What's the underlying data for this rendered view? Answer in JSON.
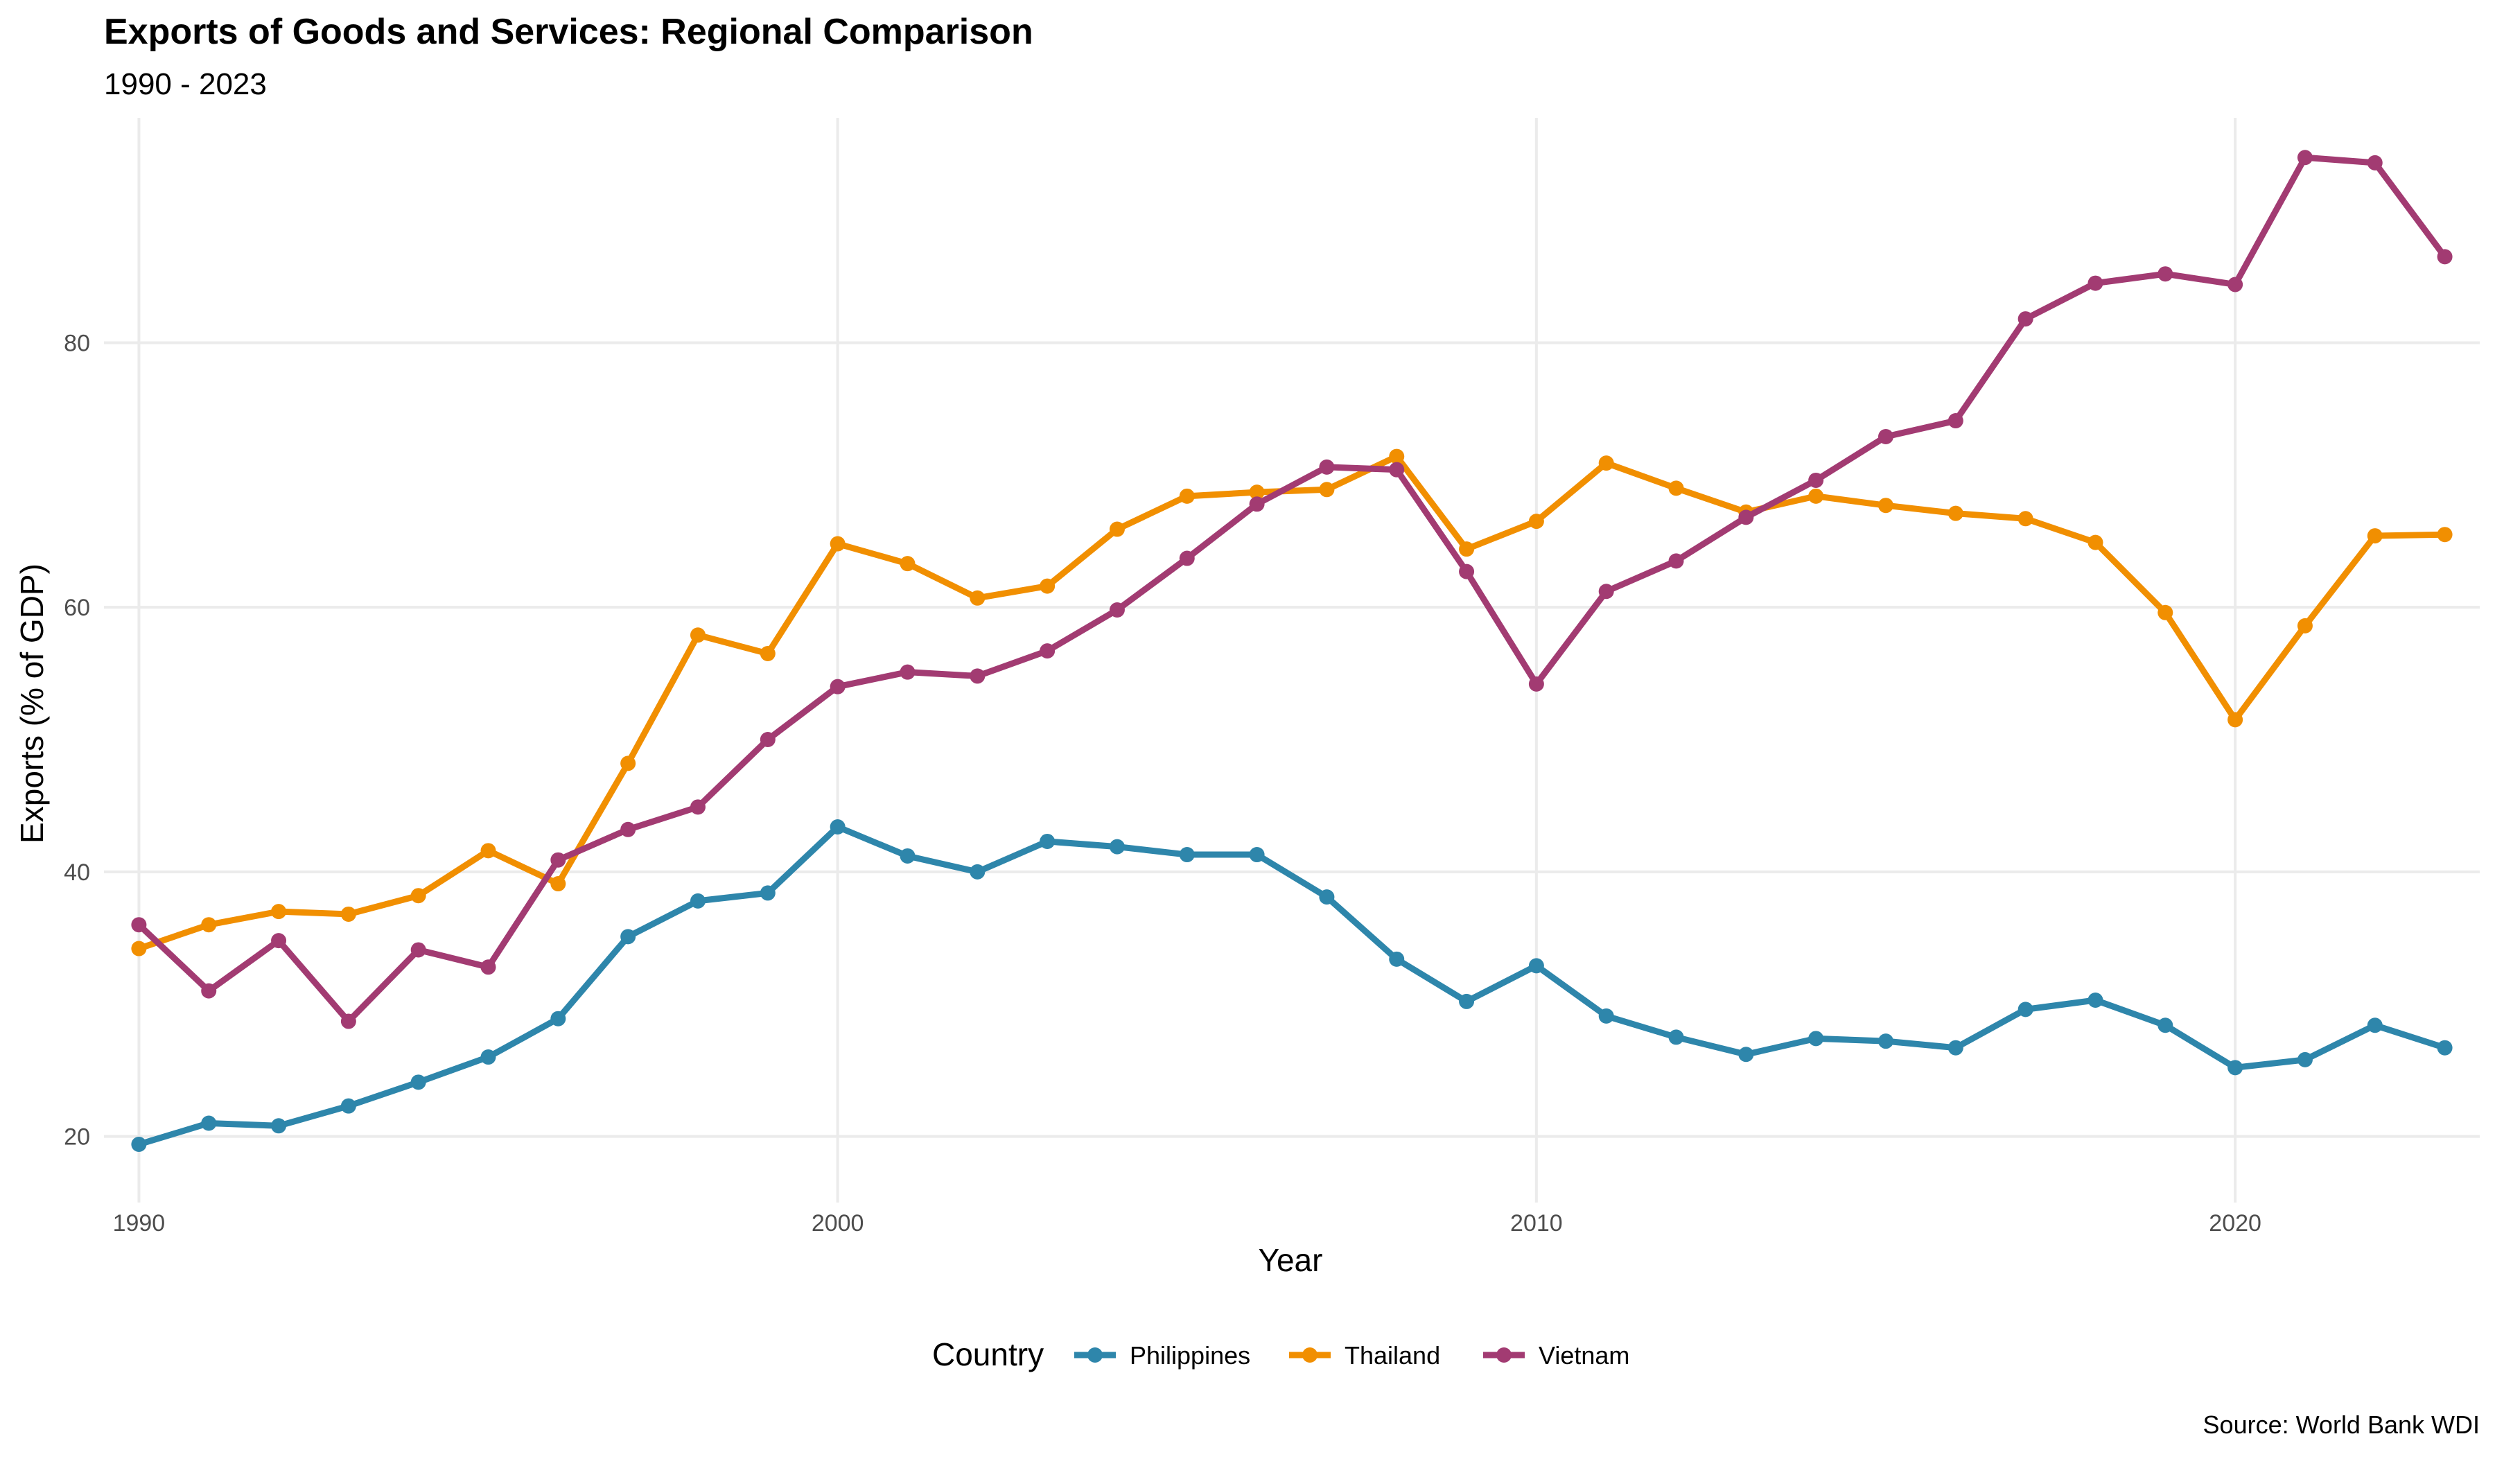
{
  "chart_data": {
    "type": "line",
    "title": "Exports of Goods and Services: Regional Comparison",
    "subtitle": "1990 - 2023",
    "xlabel": "Year",
    "ylabel": "Exports (% of GDP)",
    "caption": "Source: World Bank WDI",
    "legend_title": "Country",
    "legend_position": "bottom",
    "grid": true,
    "xlim": [
      1989.5,
      2023.5
    ],
    "ylim": [
      15,
      97
    ],
    "x_ticks": [
      1990,
      2000,
      2010,
      2020
    ],
    "y_ticks": [
      20,
      40,
      60,
      80
    ],
    "x": [
      1990,
      1991,
      1992,
      1993,
      1994,
      1995,
      1996,
      1997,
      1998,
      1999,
      2000,
      2001,
      2002,
      2003,
      2004,
      2005,
      2006,
      2007,
      2008,
      2009,
      2010,
      2011,
      2012,
      2013,
      2014,
      2015,
      2016,
      2017,
      2018,
      2019,
      2020,
      2021,
      2022,
      2023
    ],
    "series": [
      {
        "name": "Philippines",
        "color": "#2E86AB",
        "values": [
          19.4,
          21.0,
          20.8,
          22.3,
          24.1,
          26.0,
          28.9,
          35.1,
          37.8,
          38.4,
          43.4,
          41.2,
          40.0,
          42.3,
          41.9,
          41.3,
          41.3,
          38.1,
          33.4,
          30.2,
          32.9,
          29.1,
          27.5,
          26.2,
          27.4,
          27.2,
          26.7,
          29.6,
          30.3,
          28.4,
          25.2,
          25.8,
          28.4,
          26.7
        ]
      },
      {
        "name": "Thailand",
        "color": "#F18F01",
        "values": [
          34.2,
          36.0,
          37.0,
          36.8,
          38.2,
          41.6,
          39.1,
          48.2,
          57.9,
          56.5,
          64.8,
          63.3,
          60.7,
          61.6,
          65.9,
          68.4,
          68.7,
          68.9,
          71.4,
          64.4,
          66.5,
          70.9,
          69.0,
          67.2,
          68.4,
          67.7,
          67.1,
          66.7,
          64.9,
          59.6,
          51.5,
          58.6,
          65.4,
          65.5
        ]
      },
      {
        "name": "Vietnam",
        "color": "#A23B72",
        "values": [
          36.0,
          31.0,
          34.8,
          28.7,
          34.1,
          32.8,
          40.9,
          43.2,
          44.9,
          50.0,
          54.0,
          55.1,
          54.8,
          56.7,
          59.8,
          63.7,
          67.8,
          70.6,
          70.4,
          62.7,
          54.2,
          61.2,
          63.5,
          66.8,
          69.6,
          72.9,
          74.1,
          81.8,
          84.5,
          85.2,
          84.4,
          94.0,
          93.6,
          86.5
        ]
      }
    ]
  }
}
